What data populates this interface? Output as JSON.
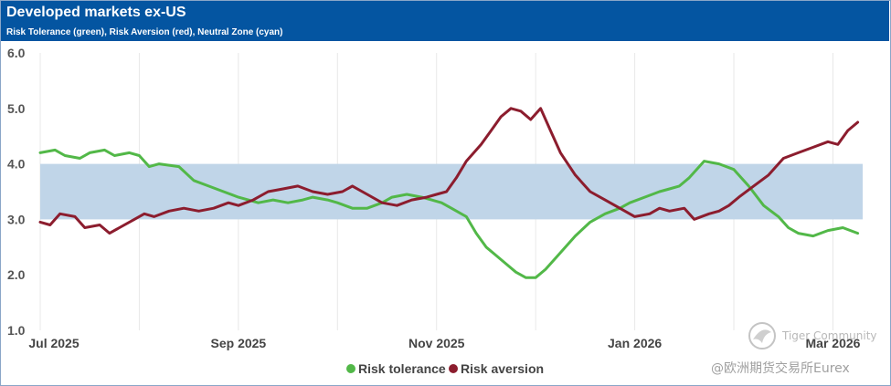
{
  "header": {
    "title": "Developed markets ex-US",
    "subtitle": "Risk Tolerance (green), Risk Aversion (red), Neutral Zone (cyan)"
  },
  "colors": {
    "header_bg": "#0455a1",
    "risk_tolerance": "#52b848",
    "risk_aversion": "#8c1d2e",
    "neutral_zone": "#c0d5e8"
  },
  "chart_data": {
    "type": "line",
    "title": "Developed markets ex-US",
    "subtitle": "Risk Tolerance (green), Risk Aversion (red), Neutral Zone (cyan)",
    "xlabel": "",
    "ylabel": "",
    "ylim": [
      1.0,
      6.0
    ],
    "y_ticks": [
      "1.0",
      "2.0",
      "3.0",
      "4.0",
      "5.0",
      "6.0"
    ],
    "x_ticks": [
      "Jul 2025",
      "Sep 2025",
      "Nov 2025",
      "Jan 2026",
      "Mar 2026"
    ],
    "x_range_months": [
      0,
      8.3
    ],
    "neutral_zone": [
      3.0,
      4.0
    ],
    "grid": "vertical",
    "legend_position": "bottom-center",
    "series": [
      {
        "name": "Risk tolerance",
        "color": "#52b848",
        "x": [
          0,
          0.15,
          0.25,
          0.4,
          0.5,
          0.65,
          0.75,
          0.9,
          1.0,
          1.1,
          1.2,
          1.4,
          1.55,
          1.7,
          1.85,
          2.0,
          2.1,
          2.2,
          2.35,
          2.5,
          2.65,
          2.75,
          2.9,
          3.0,
          3.15,
          3.3,
          3.45,
          3.55,
          3.7,
          3.85,
          3.95,
          4.05,
          4.15,
          4.3,
          4.4,
          4.5,
          4.6,
          4.7,
          4.8,
          4.9,
          5.0,
          5.1,
          5.25,
          5.4,
          5.55,
          5.7,
          5.85,
          5.95,
          6.1,
          6.25,
          6.35,
          6.45,
          6.55,
          6.7,
          6.85,
          7.0,
          7.15,
          7.3,
          7.45,
          7.55,
          7.65,
          7.8,
          7.95,
          8.1,
          8.25
        ],
        "values": [
          4.2,
          4.25,
          4.15,
          4.1,
          4.2,
          4.25,
          4.15,
          4.2,
          4.15,
          3.95,
          4.0,
          3.95,
          3.7,
          3.6,
          3.5,
          3.4,
          3.35,
          3.3,
          3.35,
          3.3,
          3.35,
          3.4,
          3.35,
          3.3,
          3.2,
          3.2,
          3.3,
          3.4,
          3.45,
          3.4,
          3.35,
          3.3,
          3.2,
          3.05,
          2.75,
          2.5,
          2.35,
          2.2,
          2.05,
          1.95,
          1.95,
          2.1,
          2.4,
          2.7,
          2.95,
          3.1,
          3.2,
          3.3,
          3.4,
          3.5,
          3.55,
          3.6,
          3.75,
          4.05,
          4.0,
          3.9,
          3.6,
          3.25,
          3.05,
          2.85,
          2.75,
          2.7,
          2.8,
          2.85,
          2.75
        ]
      },
      {
        "name": "Risk aversion",
        "color": "#8c1d2e",
        "x": [
          0,
          0.1,
          0.2,
          0.35,
          0.45,
          0.6,
          0.7,
          0.8,
          0.95,
          1.05,
          1.15,
          1.3,
          1.45,
          1.6,
          1.75,
          1.9,
          2.0,
          2.15,
          2.3,
          2.45,
          2.6,
          2.75,
          2.9,
          3.05,
          3.15,
          3.3,
          3.45,
          3.6,
          3.75,
          3.9,
          4.0,
          4.1,
          4.2,
          4.3,
          4.45,
          4.55,
          4.65,
          4.75,
          4.85,
          4.95,
          5.05,
          5.15,
          5.25,
          5.4,
          5.55,
          5.7,
          5.85,
          6.0,
          6.15,
          6.25,
          6.35,
          6.5,
          6.6,
          6.75,
          6.85,
          6.95,
          7.05,
          7.2,
          7.35,
          7.5,
          7.65,
          7.8,
          7.95,
          8.05,
          8.15,
          8.25
        ],
        "values": [
          2.95,
          2.9,
          3.1,
          3.05,
          2.85,
          2.9,
          2.75,
          2.85,
          3.0,
          3.1,
          3.05,
          3.15,
          3.2,
          3.15,
          3.2,
          3.3,
          3.25,
          3.35,
          3.5,
          3.55,
          3.6,
          3.5,
          3.45,
          3.5,
          3.6,
          3.45,
          3.3,
          3.25,
          3.35,
          3.4,
          3.45,
          3.5,
          3.75,
          4.05,
          4.35,
          4.6,
          4.85,
          5.0,
          4.95,
          4.8,
          5.0,
          4.6,
          4.2,
          3.8,
          3.5,
          3.35,
          3.2,
          3.05,
          3.1,
          3.2,
          3.15,
          3.2,
          3.0,
          3.1,
          3.15,
          3.25,
          3.4,
          3.6,
          3.8,
          4.1,
          4.2,
          4.3,
          4.4,
          4.35,
          4.6,
          4.75
        ]
      }
    ]
  },
  "watermark": {
    "brand": "Tiger Community",
    "handle": "@欧洲期货交易所Eurex"
  }
}
